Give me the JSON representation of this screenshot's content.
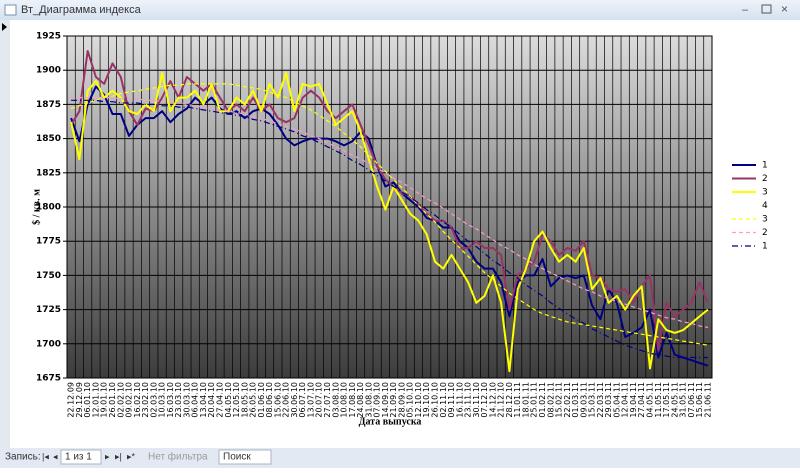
{
  "window": {
    "title": "Вт_Диаграмма индекса",
    "record_label": "Запись:",
    "record_position": "1 из 1",
    "filter": "Нет фильтра",
    "search": "Поиск"
  },
  "chart_data": {
    "type": "line",
    "x_label": "Дата выпуска",
    "y_label": "$ / кв. м",
    "categories": [
      "22.12.09",
      "29.12.09",
      "06.01.10",
      "12.01.10",
      "19.01.10",
      "26.01.10",
      "02.02.10",
      "09.02.10",
      "16.02.10",
      "23.02.10",
      "02.03.10",
      "10.03.10",
      "16.03.10",
      "23.03.10",
      "30.03.10",
      "06.04.10",
      "13.04.10",
      "20.04.10",
      "27.04.10",
      "04.05.10",
      "12.05.10",
      "18.05.10",
      "26.05.10",
      "01.06.10",
      "08.06.10",
      "15.06.10",
      "22.06.10",
      "30.06.10",
      "06.07.10",
      "13.07.10",
      "20.07.10",
      "27.07.10",
      "03.08.10",
      "10.08.10",
      "17.08.10",
      "24.08.10",
      "31.08.10",
      "07.09.10",
      "14.09.10",
      "21.09.10",
      "28.09.10",
      "05.10.10",
      "12.10.10",
      "19.10.10",
      "26.10.10",
      "02.11.10",
      "09.11.10",
      "16.11.10",
      "23.11.10",
      "30.11.10",
      "07.12.10",
      "14.12.10",
      "21.12.10",
      "28.12.10",
      "11.01.11",
      "18.01.11",
      "25.01.11",
      "01.02.11",
      "08.02.11",
      "15.02.11",
      "22.02.11",
      "01.03.11",
      "09.03.11",
      "15.03.11",
      "22.03.11",
      "29.03.11",
      "05.04.11",
      "12.04.11",
      "19.04.11",
      "27.04.11",
      "04.05.11",
      "11.05.11",
      "17.05.11",
      "24.05.11",
      "31.05.11",
      "07.06.11",
      "15.06.11",
      "21.06.11"
    ],
    "ylim": [
      1675,
      1925
    ],
    "yticks": [
      1675,
      1700,
      1725,
      1750,
      1775,
      1800,
      1825,
      1850,
      1875,
      1900,
      1925
    ],
    "grid": true,
    "legend": "right",
    "series": [
      {
        "name": "1",
        "color": "#000080",
        "line_style": "solid",
        "values": [
          1865,
          1848,
          1875,
          1888,
          1882,
          1868,
          1868,
          1852,
          1860,
          1865,
          1865,
          1870,
          1862,
          1868,
          1872,
          1880,
          1875,
          1880,
          1872,
          1868,
          1870,
          1865,
          1870,
          1872,
          1868,
          1860,
          1850,
          1845,
          1848,
          1850,
          1850,
          1850,
          1848,
          1845,
          1848,
          1855,
          1850,
          1830,
          1815,
          1818,
          1810,
          1805,
          1800,
          1792,
          1790,
          1785,
          1785,
          1775,
          1770,
          1760,
          1755,
          1755,
          1745,
          1720,
          1745,
          1750,
          1750,
          1762,
          1742,
          1748,
          1750,
          1748,
          1750,
          1728,
          1718,
          1740,
          1730,
          1705,
          1708,
          1712,
          1725,
          1690,
          1708,
          1692,
          1690,
          1688,
          1686,
          1684
        ]
      },
      {
        "name": "2",
        "color": "#993366",
        "line_style": "solid",
        "values": [
          1860,
          1870,
          1914,
          1895,
          1890,
          1905,
          1895,
          1870,
          1860,
          1872,
          1870,
          1880,
          1892,
          1880,
          1895,
          1890,
          1885,
          1890,
          1880,
          1870,
          1875,
          1870,
          1880,
          1870,
          1875,
          1865,
          1862,
          1865,
          1880,
          1885,
          1880,
          1870,
          1865,
          1870,
          1875,
          1860,
          1845,
          1830,
          1820,
          1815,
          1810,
          1808,
          1802,
          1795,
          1790,
          1790,
          1785,
          1770,
          1770,
          1775,
          1770,
          1770,
          1765,
          1725,
          1750,
          1755,
          1760,
          1780,
          1775,
          1765,
          1770,
          1768,
          1775,
          1750,
          1748,
          1740,
          1738,
          1740,
          1730,
          1742,
          1750,
          1695,
          1730,
          1720,
          1725,
          1730,
          1745,
          1730
        ]
      },
      {
        "name": "3",
        "color": "#ffff00",
        "line_style": "solid",
        "values": [
          1862,
          1835,
          1885,
          1892,
          1880,
          1885,
          1880,
          1870,
          1868,
          1875,
          1870,
          1898,
          1870,
          1880,
          1880,
          1885,
          1875,
          1890,
          1870,
          1870,
          1880,
          1875,
          1885,
          1870,
          1890,
          1880,
          1898,
          1870,
          1890,
          1888,
          1890,
          1875,
          1860,
          1865,
          1870,
          1855,
          1835,
          1815,
          1798,
          1815,
          1805,
          1795,
          1790,
          1780,
          1760,
          1755,
          1765,
          1755,
          1745,
          1730,
          1735,
          1750,
          1730,
          1680,
          1740,
          1755,
          1775,
          1782,
          1770,
          1760,
          1765,
          1760,
          1770,
          1740,
          1748,
          1730,
          1735,
          1725,
          1735,
          1742,
          1682,
          1718,
          1710,
          1708,
          1710,
          1715,
          1720,
          1725
        ]
      },
      {
        "name": "4",
        "color": "#ffffff",
        "line_style": "solid",
        "values": [
          null,
          null,
          null,
          null,
          null,
          null,
          null,
          null,
          null,
          null,
          null,
          null,
          null,
          null,
          null,
          null,
          null,
          null,
          null,
          null,
          null,
          null,
          null,
          null,
          null,
          null,
          null,
          null,
          null,
          null,
          null,
          null,
          null,
          null,
          null,
          null,
          null,
          null,
          null,
          null,
          null,
          null,
          null,
          null,
          null,
          null,
          null,
          null,
          null,
          null,
          null,
          null,
          null,
          null,
          null,
          null,
          null,
          null,
          null,
          null,
          null,
          null,
          null,
          null,
          null,
          null,
          null,
          null,
          null,
          null,
          null,
          null,
          null,
          null,
          null,
          null,
          null,
          null
        ]
      },
      {
        "name": "3",
        "color": "#ffff00",
        "line_style": "dashed",
        "values": [
          1872,
          1874,
          1876,
          1878,
          1880,
          1881,
          1883,
          1884,
          1885,
          1886,
          1887,
          1888,
          1889,
          1889,
          1890,
          1890,
          1890,
          1890,
          1890,
          1890,
          1889,
          1888,
          1887,
          1886,
          1884,
          1882,
          1880,
          1877,
          1874,
          1871,
          1867,
          1863,
          1859,
          1854,
          1849,
          1844,
          1838,
          1832,
          1826,
          1820,
          1814,
          1808,
          1801,
          1795,
          1789,
          1782,
          1776,
          1770,
          1764,
          1758,
          1752,
          1747,
          1742,
          1737,
          1733,
          1729,
          1725,
          1722,
          1720,
          1718,
          1716,
          1715,
          1714,
          1713,
          1712,
          1711,
          1710,
          1709,
          1708,
          1707,
          1706,
          1705,
          1704,
          1703,
          1702,
          1701,
          1700,
          1699
        ]
      },
      {
        "name": "2",
        "color": "#ff99cc",
        "line_style": "dashed",
        "values": [
          1880,
          1880,
          1880,
          1880,
          1880,
          1880,
          1879,
          1879,
          1879,
          1878,
          1878,
          1877,
          1877,
          1876,
          1875,
          1874,
          1873,
          1872,
          1871,
          1870,
          1869,
          1868,
          1866,
          1865,
          1863,
          1861,
          1859,
          1857,
          1855,
          1852,
          1850,
          1847,
          1844,
          1841,
          1838,
          1835,
          1832,
          1828,
          1825,
          1821,
          1818,
          1814,
          1810,
          1806,
          1803,
          1799,
          1795,
          1791,
          1787,
          1784,
          1780,
          1776,
          1772,
          1769,
          1765,
          1762,
          1758,
          1755,
          1752,
          1749,
          1746,
          1743,
          1740,
          1738,
          1735,
          1733,
          1731,
          1729,
          1727,
          1725,
          1723,
          1721,
          1719,
          1718,
          1716,
          1715,
          1713,
          1712
        ]
      },
      {
        "name": "1",
        "color": "#000080",
        "line_style": "dashdot",
        "values": [
          1878,
          1878,
          1878,
          1878,
          1877,
          1877,
          1876,
          1876,
          1876,
          1875,
          1875,
          1874,
          1874,
          1873,
          1873,
          1872,
          1871,
          1870,
          1869,
          1868,
          1867,
          1866,
          1864,
          1863,
          1861,
          1859,
          1857,
          1855,
          1852,
          1850,
          1847,
          1844,
          1841,
          1838,
          1834,
          1831,
          1827,
          1823,
          1819,
          1815,
          1811,
          1807,
          1803,
          1798,
          1794,
          1789,
          1785,
          1780,
          1775,
          1771,
          1766,
          1761,
          1757,
          1752,
          1748,
          1743,
          1739,
          1735,
          1730,
          1726,
          1722,
          1718,
          1715,
          1711,
          1708,
          1705,
          1702,
          1699,
          1697,
          1695,
          1693,
          1692,
          1691,
          1690,
          1690,
          1690,
          1690,
          1690
        ]
      }
    ]
  }
}
